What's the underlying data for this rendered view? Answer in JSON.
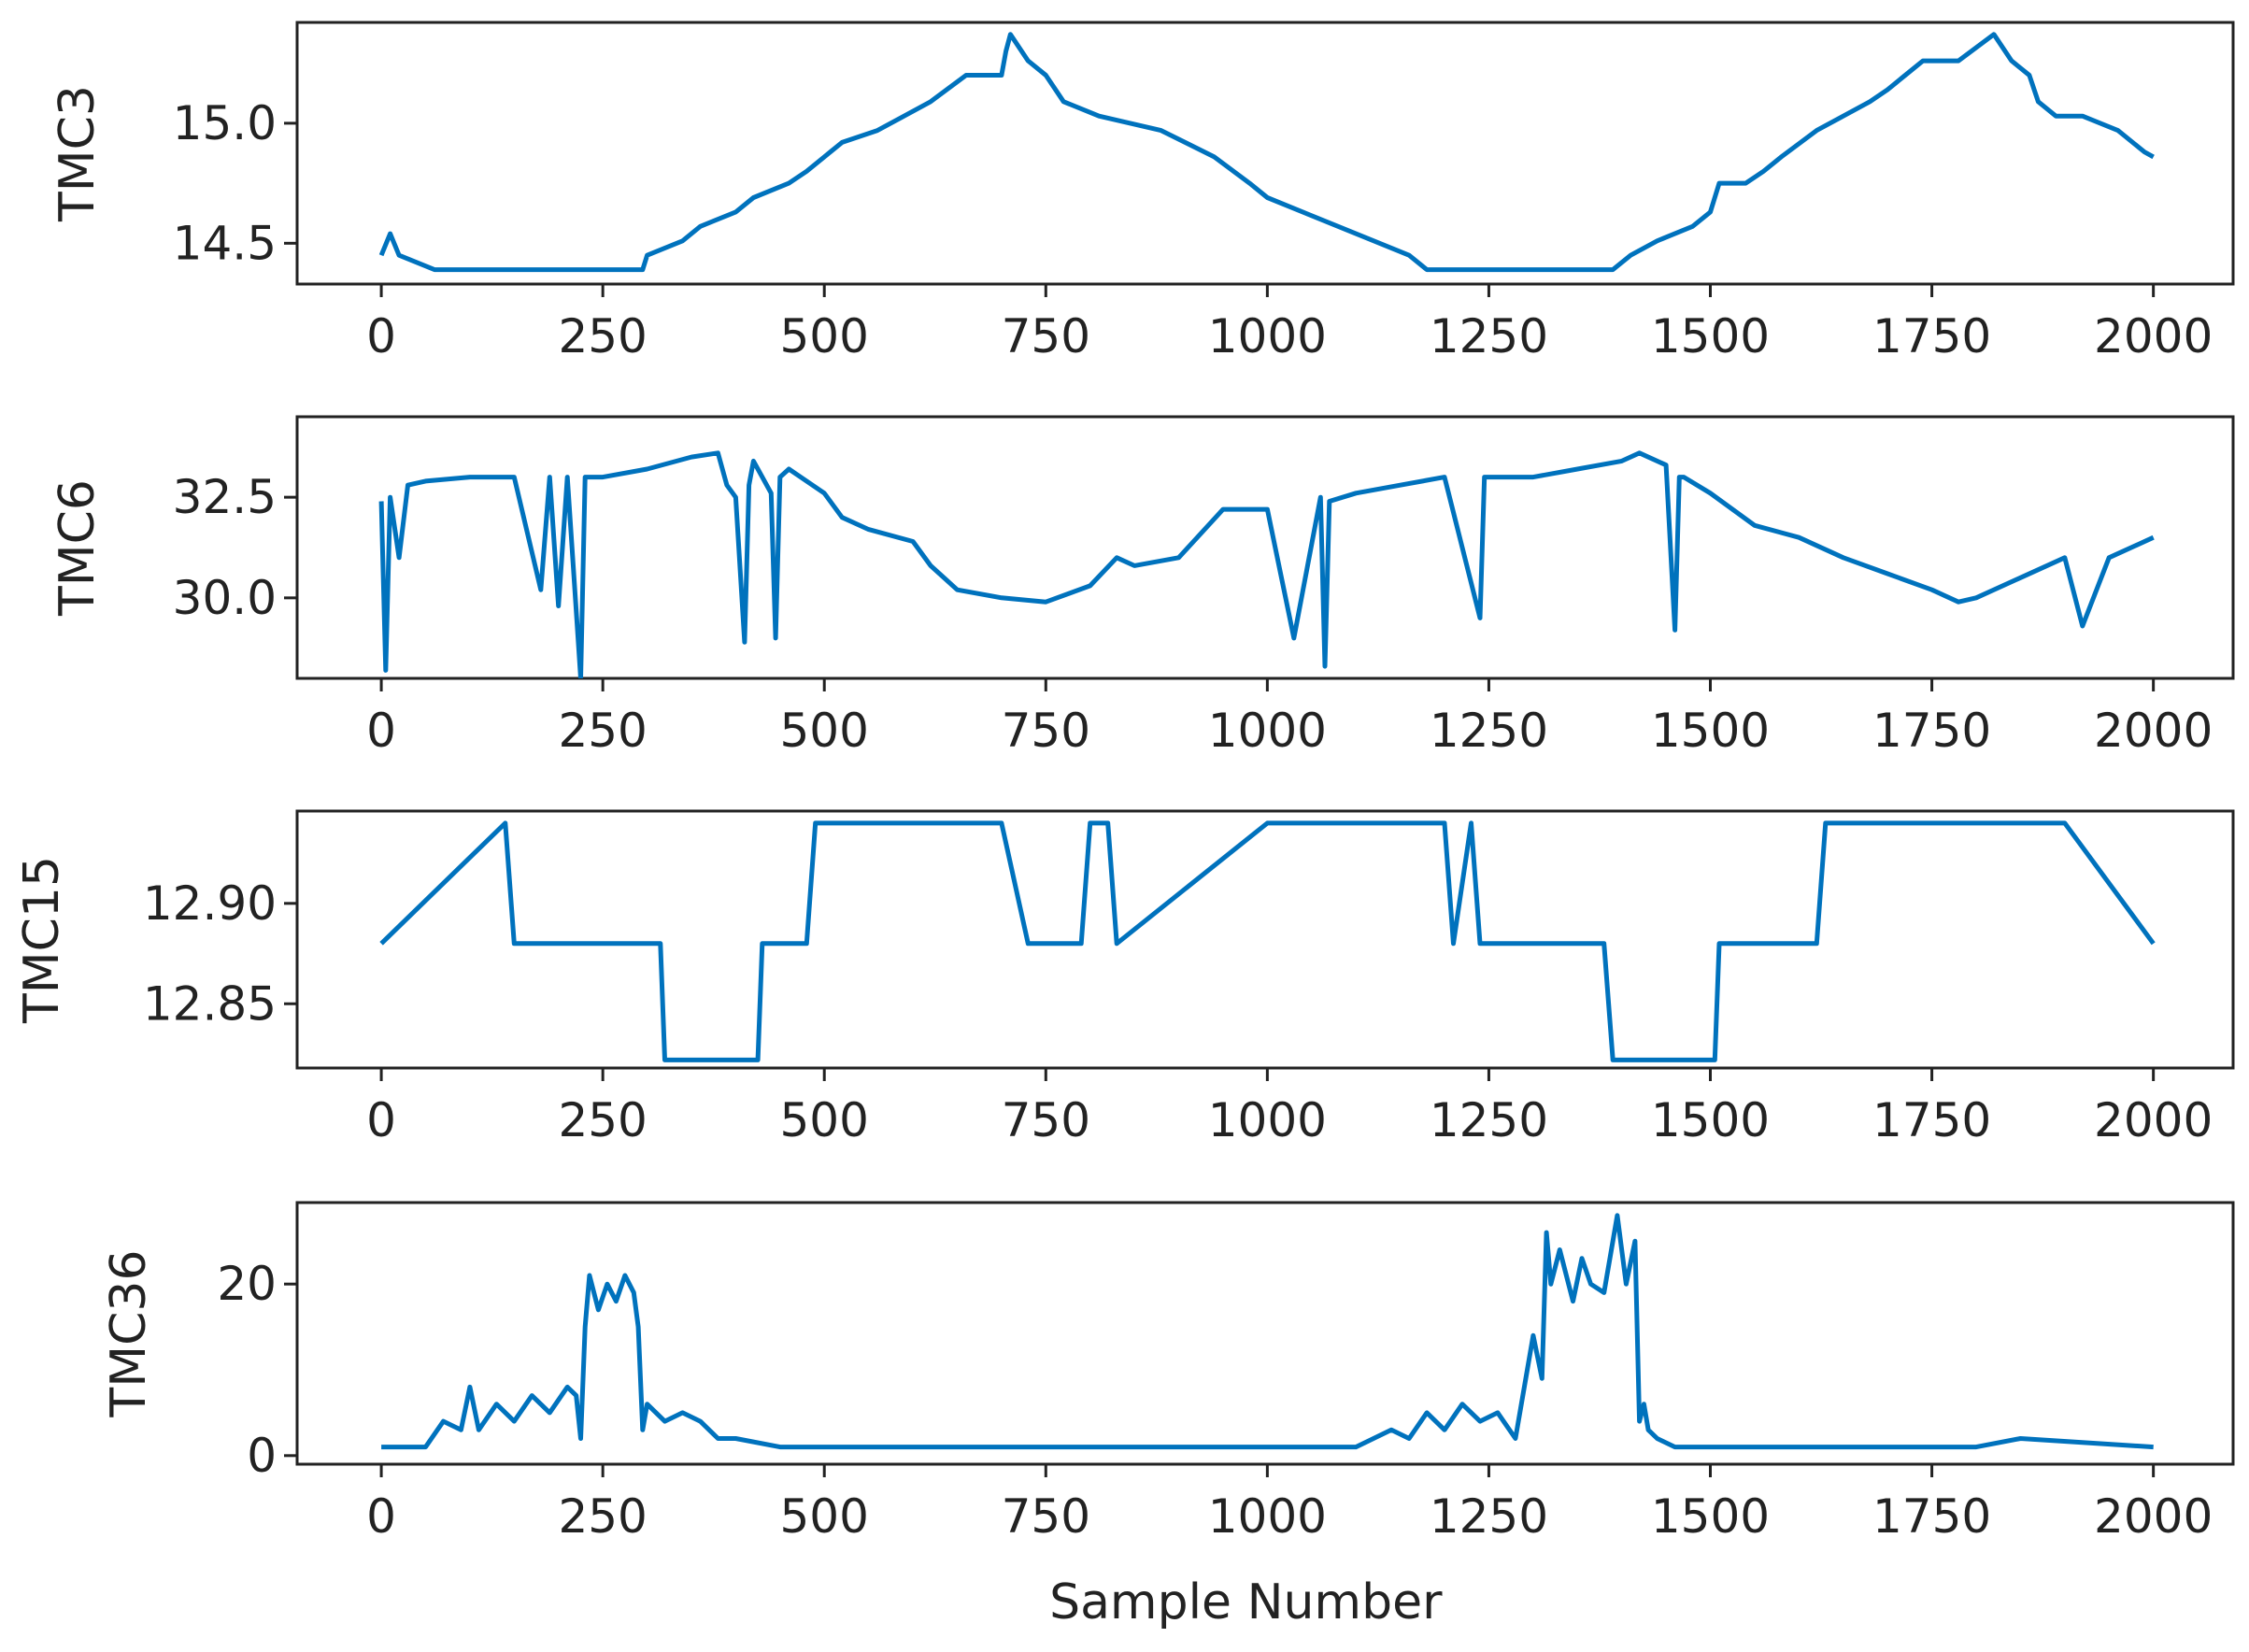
{
  "chart_data": [
    {
      "type": "line",
      "ylabel": "TMC3",
      "xlabel": "",
      "xlim": [
        -95,
        2090
      ],
      "ylim": [
        14.33,
        15.42
      ],
      "xticks": [
        0,
        250,
        500,
        750,
        1000,
        1250,
        1500,
        1750,
        2000
      ],
      "yticks": [
        14.5,
        15.0
      ],
      "ytick_labels": [
        "14.5",
        "15.0"
      ],
      "x": [
        0,
        10,
        20,
        60,
        100,
        150,
        200,
        250,
        295,
        300,
        340,
        360,
        400,
        420,
        460,
        480,
        500,
        520,
        560,
        590,
        620,
        660,
        700,
        705,
        710,
        730,
        750,
        770,
        810,
        880,
        940,
        980,
        1000,
        1160,
        1180,
        1200,
        1250,
        1390,
        1410,
        1440,
        1480,
        1500,
        1510,
        1540,
        1560,
        1580,
        1620,
        1650,
        1680,
        1700,
        1720,
        1740,
        1780,
        1820,
        1840,
        1860,
        1870,
        1890,
        1920,
        1960,
        1990,
        2000
      ],
      "y": [
        14.45,
        14.54,
        14.45,
        14.39,
        14.39,
        14.39,
        14.39,
        14.39,
        14.39,
        14.45,
        14.51,
        14.57,
        14.63,
        14.69,
        14.75,
        14.8,
        14.86,
        14.92,
        14.97,
        15.03,
        15.09,
        15.2,
        15.2,
        15.3,
        15.37,
        15.26,
        15.2,
        15.09,
        15.03,
        14.97,
        14.86,
        14.75,
        14.69,
        14.45,
        14.39,
        14.39,
        14.39,
        14.39,
        14.45,
        14.51,
        14.57,
        14.63,
        14.75,
        14.75,
        14.8,
        14.86,
        14.97,
        15.03,
        15.09,
        15.14,
        15.2,
        15.26,
        15.26,
        15.37,
        15.26,
        15.2,
        15.09,
        15.03,
        15.03,
        14.97,
        14.88,
        14.86
      ],
      "color": "#0072bd"
    },
    {
      "type": "line",
      "ylabel": "TMC6",
      "xlabel": "",
      "xlim": [
        -95,
        2090
      ],
      "ylim": [
        28.0,
        34.5
      ],
      "xticks": [
        0,
        250,
        500,
        750,
        1000,
        1250,
        1500,
        1750,
        2000
      ],
      "yticks": [
        30.0,
        32.5
      ],
      "ytick_labels": [
        "30.0",
        "32.5"
      ],
      "x": [
        0,
        5,
        10,
        20,
        30,
        50,
        100,
        150,
        180,
        190,
        200,
        210,
        225,
        230,
        250,
        300,
        350,
        380,
        390,
        400,
        410,
        415,
        420,
        440,
        445,
        450,
        460,
        500,
        520,
        550,
        600,
        620,
        650,
        700,
        750,
        800,
        830,
        850,
        900,
        950,
        1000,
        1030,
        1060,
        1065,
        1070,
        1100,
        1150,
        1200,
        1240,
        1245,
        1250,
        1300,
        1350,
        1400,
        1420,
        1450,
        1460,
        1465,
        1470,
        1500,
        1550,
        1600,
        1650,
        1700,
        1750,
        1780,
        1800,
        1850,
        1900,
        1920,
        1950,
        2000
      ],
      "y": [
        32.4,
        28.2,
        32.5,
        31.0,
        32.8,
        32.9,
        33.0,
        33.0,
        30.2,
        33.0,
        29.8,
        33.0,
        28.0,
        33.0,
        33.0,
        33.2,
        33.5,
        33.6,
        32.8,
        32.5,
        28.9,
        32.8,
        33.4,
        32.6,
        29.0,
        33.0,
        33.2,
        32.6,
        32.0,
        31.7,
        31.4,
        30.8,
        30.2,
        30.0,
        29.9,
        30.3,
        31.0,
        30.8,
        31.0,
        32.2,
        32.2,
        29.0,
        32.5,
        28.3,
        32.4,
        32.6,
        32.8,
        33.0,
        29.5,
        33.0,
        33.0,
        33.0,
        33.2,
        33.4,
        33.6,
        33.3,
        29.2,
        33.0,
        33.0,
        32.6,
        31.8,
        31.5,
        31.0,
        30.6,
        30.2,
        29.9,
        30.0,
        30.5,
        31.0,
        29.3,
        31.0,
        31.5
      ],
      "color": "#0072bd"
    },
    {
      "type": "line",
      "ylabel": "TMC15",
      "xlabel": "",
      "xlim": [
        -95,
        2090
      ],
      "ylim": [
        12.818,
        12.946
      ],
      "xticks": [
        0,
        250,
        500,
        750,
        1000,
        1250,
        1500,
        1750,
        2000
      ],
      "yticks": [
        12.85,
        12.9
      ],
      "ytick_labels": [
        "12.85",
        "12.90"
      ],
      "x": [
        0,
        140,
        150,
        315,
        320,
        425,
        430,
        480,
        490,
        600,
        700,
        730,
        790,
        800,
        810,
        820,
        830,
        1000,
        1100,
        1200,
        1210,
        1230,
        1240,
        1250,
        1260,
        1380,
        1390,
        1505,
        1510,
        1620,
        1630,
        1700,
        1800,
        1900,
        2000
      ],
      "y": [
        12.88,
        12.94,
        12.88,
        12.88,
        12.822,
        12.822,
        12.88,
        12.88,
        12.94,
        12.94,
        12.94,
        12.88,
        12.88,
        12.94,
        12.94,
        12.94,
        12.88,
        12.94,
        12.94,
        12.94,
        12.88,
        12.94,
        12.88,
        12.88,
        12.88,
        12.88,
        12.822,
        12.822,
        12.88,
        12.88,
        12.94,
        12.94,
        12.94,
        12.94,
        12.88
      ],
      "color": "#0072bd"
    },
    {
      "type": "line",
      "ylabel": "TMC36",
      "xlabel": "Sample Number",
      "xlim": [
        -95,
        2090
      ],
      "ylim": [
        -1.0,
        29.5
      ],
      "xticks": [
        0,
        250,
        500,
        750,
        1000,
        1250,
        1500,
        1750,
        2000
      ],
      "yticks": [
        0,
        20
      ],
      "ytick_labels": [
        "0",
        "20"
      ],
      "x": [
        0,
        50,
        70,
        90,
        100,
        110,
        130,
        150,
        170,
        190,
        210,
        220,
        225,
        230,
        235,
        245,
        255,
        265,
        275,
        285,
        290,
        295,
        300,
        320,
        340,
        360,
        380,
        400,
        450,
        600,
        800,
        1000,
        1100,
        1140,
        1160,
        1180,
        1200,
        1220,
        1240,
        1260,
        1280,
        1300,
        1310,
        1315,
        1320,
        1330,
        1345,
        1355,
        1365,
        1380,
        1395,
        1405,
        1415,
        1420,
        1425,
        1430,
        1440,
        1460,
        1480,
        1600,
        1800,
        1850,
        2000
      ],
      "y": [
        1,
        1,
        4,
        3,
        8,
        3,
        6,
        4,
        7,
        5,
        8,
        7,
        2,
        15,
        21,
        17,
        20,
        18,
        21,
        19,
        15,
        3,
        6,
        4,
        5,
        4,
        2,
        2,
        1,
        1,
        1,
        1,
        1,
        3,
        2,
        5,
        3,
        6,
        4,
        5,
        2,
        14,
        9,
        26,
        20,
        24,
        18,
        23,
        20,
        19,
        28,
        20,
        25,
        4,
        6,
        3,
        2,
        1,
        1,
        1,
        1,
        2,
        1
      ],
      "color": "#0072bd"
    }
  ]
}
